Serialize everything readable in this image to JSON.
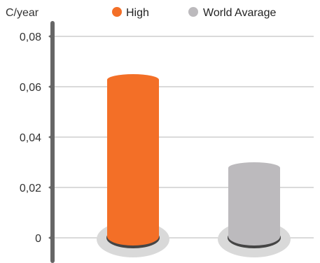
{
  "chart_data": {
    "type": "bar",
    "ylabel": "C/year",
    "categories": [
      "High",
      "World Avarage"
    ],
    "values": [
      0.065,
      0.03
    ],
    "colors": [
      "#f36f27",
      "#bcbabd"
    ],
    "ylim": [
      0,
      0.08
    ],
    "yticks": [
      0,
      0.02,
      0.04,
      0.06,
      0.08
    ],
    "ytick_labels": [
      "0",
      "0,02",
      "0,04",
      "0,06",
      "0,08"
    ],
    "grid": true,
    "legend": {
      "position": "top",
      "entries": [
        {
          "label": "High",
          "color": "#f36f27"
        },
        {
          "label": "World Avarage",
          "color": "#bcbabd"
        }
      ]
    },
    "axis_color": "#666666",
    "grid_color": "#b5b5b5",
    "base_shadow_color": "#d9d9d9",
    "base_rim_color": "#454545"
  }
}
